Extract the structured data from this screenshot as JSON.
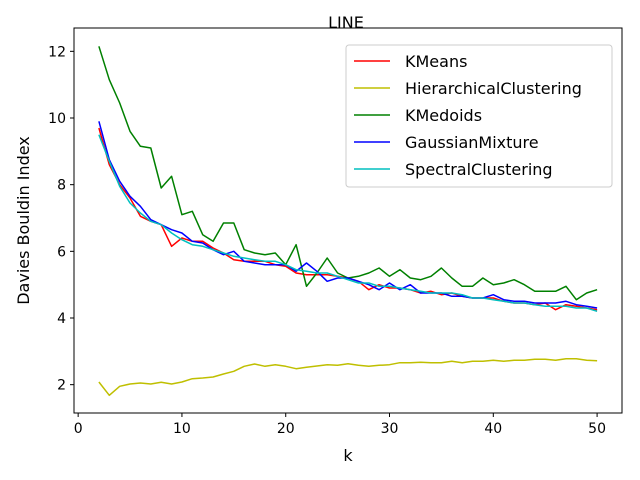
{
  "chart_data": {
    "type": "line",
    "title": "LINE",
    "xlabel": "k",
    "ylabel": "Davies Bouldin Index",
    "xlim": [
      -0.4,
      52.4
    ],
    "ylim": [
      1.15,
      12.7
    ],
    "xticks": [
      0,
      10,
      20,
      30,
      40,
      50
    ],
    "yticks": [
      2,
      4,
      6,
      8,
      10,
      12
    ],
    "grid": false,
    "legend_position": "top-right",
    "x": [
      2,
      3,
      4,
      5,
      6,
      7,
      8,
      9,
      10,
      11,
      12,
      13,
      14,
      15,
      16,
      17,
      18,
      19,
      20,
      21,
      22,
      23,
      24,
      25,
      26,
      27,
      28,
      29,
      30,
      31,
      32,
      33,
      34,
      35,
      36,
      37,
      38,
      39,
      40,
      41,
      42,
      43,
      44,
      45,
      46,
      47,
      48,
      49,
      50
    ],
    "series": [
      {
        "name": "KMeans",
        "color": "#ff0000",
        "values": [
          9.7,
          8.6,
          8.0,
          7.6,
          7.05,
          6.9,
          6.8,
          6.15,
          6.4,
          6.3,
          6.3,
          6.1,
          5.95,
          5.75,
          5.7,
          5.7,
          5.7,
          5.6,
          5.55,
          5.35,
          5.3,
          5.3,
          5.3,
          5.25,
          5.2,
          5.1,
          4.85,
          5.0,
          4.9,
          4.9,
          4.85,
          4.75,
          4.8,
          4.7,
          4.75,
          4.65,
          4.6,
          4.6,
          4.6,
          4.5,
          4.45,
          4.45,
          4.4,
          4.45,
          4.25,
          4.4,
          4.35,
          4.3,
          4.25
        ]
      },
      {
        "name": "HierarchicalClustering",
        "color": "#bfbf00",
        "values": [
          2.08,
          1.68,
          1.95,
          2.02,
          2.05,
          2.02,
          2.07,
          2.02,
          2.08,
          2.18,
          2.2,
          2.23,
          2.32,
          2.4,
          2.55,
          2.62,
          2.55,
          2.6,
          2.55,
          2.48,
          2.52,
          2.56,
          2.6,
          2.58,
          2.63,
          2.58,
          2.55,
          2.58,
          2.6,
          2.66,
          2.66,
          2.67,
          2.66,
          2.66,
          2.7,
          2.66,
          2.7,
          2.7,
          2.73,
          2.7,
          2.73,
          2.73,
          2.76,
          2.76,
          2.73,
          2.78,
          2.78,
          2.73,
          2.72
        ]
      },
      {
        "name": "KMedoids",
        "color": "#008000",
        "values": [
          12.15,
          11.15,
          10.45,
          9.6,
          9.15,
          9.1,
          7.9,
          8.25,
          7.1,
          7.2,
          6.5,
          6.3,
          6.85,
          6.85,
          6.05,
          5.95,
          5.9,
          5.95,
          5.6,
          6.2,
          4.95,
          5.35,
          5.8,
          5.35,
          5.2,
          5.25,
          5.35,
          5.5,
          5.25,
          5.45,
          5.2,
          5.15,
          5.25,
          5.5,
          5.2,
          4.95,
          4.95,
          5.2,
          5.0,
          5.05,
          5.15,
          5.0,
          4.8,
          4.8,
          4.8,
          4.95,
          4.55,
          4.75,
          4.85
        ]
      },
      {
        "name": "GaussianMixture",
        "color": "#0000ff",
        "values": [
          9.9,
          8.75,
          8.1,
          7.65,
          7.35,
          6.95,
          6.8,
          6.65,
          6.55,
          6.3,
          6.25,
          6.05,
          5.9,
          6.0,
          5.7,
          5.65,
          5.6,
          5.6,
          5.6,
          5.4,
          5.65,
          5.4,
          5.1,
          5.2,
          5.2,
          5.1,
          5.0,
          4.85,
          5.05,
          4.85,
          5.0,
          4.75,
          4.75,
          4.75,
          4.65,
          4.65,
          4.6,
          4.6,
          4.7,
          4.55,
          4.5,
          4.5,
          4.45,
          4.45,
          4.45,
          4.5,
          4.4,
          4.35,
          4.3
        ]
      },
      {
        "name": "SpectralClustering",
        "color": "#00bfbf",
        "values": [
          9.5,
          8.7,
          7.95,
          7.45,
          7.15,
          6.9,
          6.8,
          6.55,
          6.35,
          6.2,
          6.15,
          6.05,
          5.95,
          5.85,
          5.8,
          5.75,
          5.7,
          5.7,
          5.6,
          5.45,
          5.4,
          5.35,
          5.35,
          5.25,
          5.15,
          5.05,
          5.05,
          4.95,
          4.95,
          4.9,
          4.85,
          4.8,
          4.75,
          4.75,
          4.75,
          4.7,
          4.6,
          4.6,
          4.55,
          4.5,
          4.45,
          4.45,
          4.4,
          4.35,
          4.35,
          4.35,
          4.3,
          4.3,
          4.2
        ]
      }
    ]
  }
}
